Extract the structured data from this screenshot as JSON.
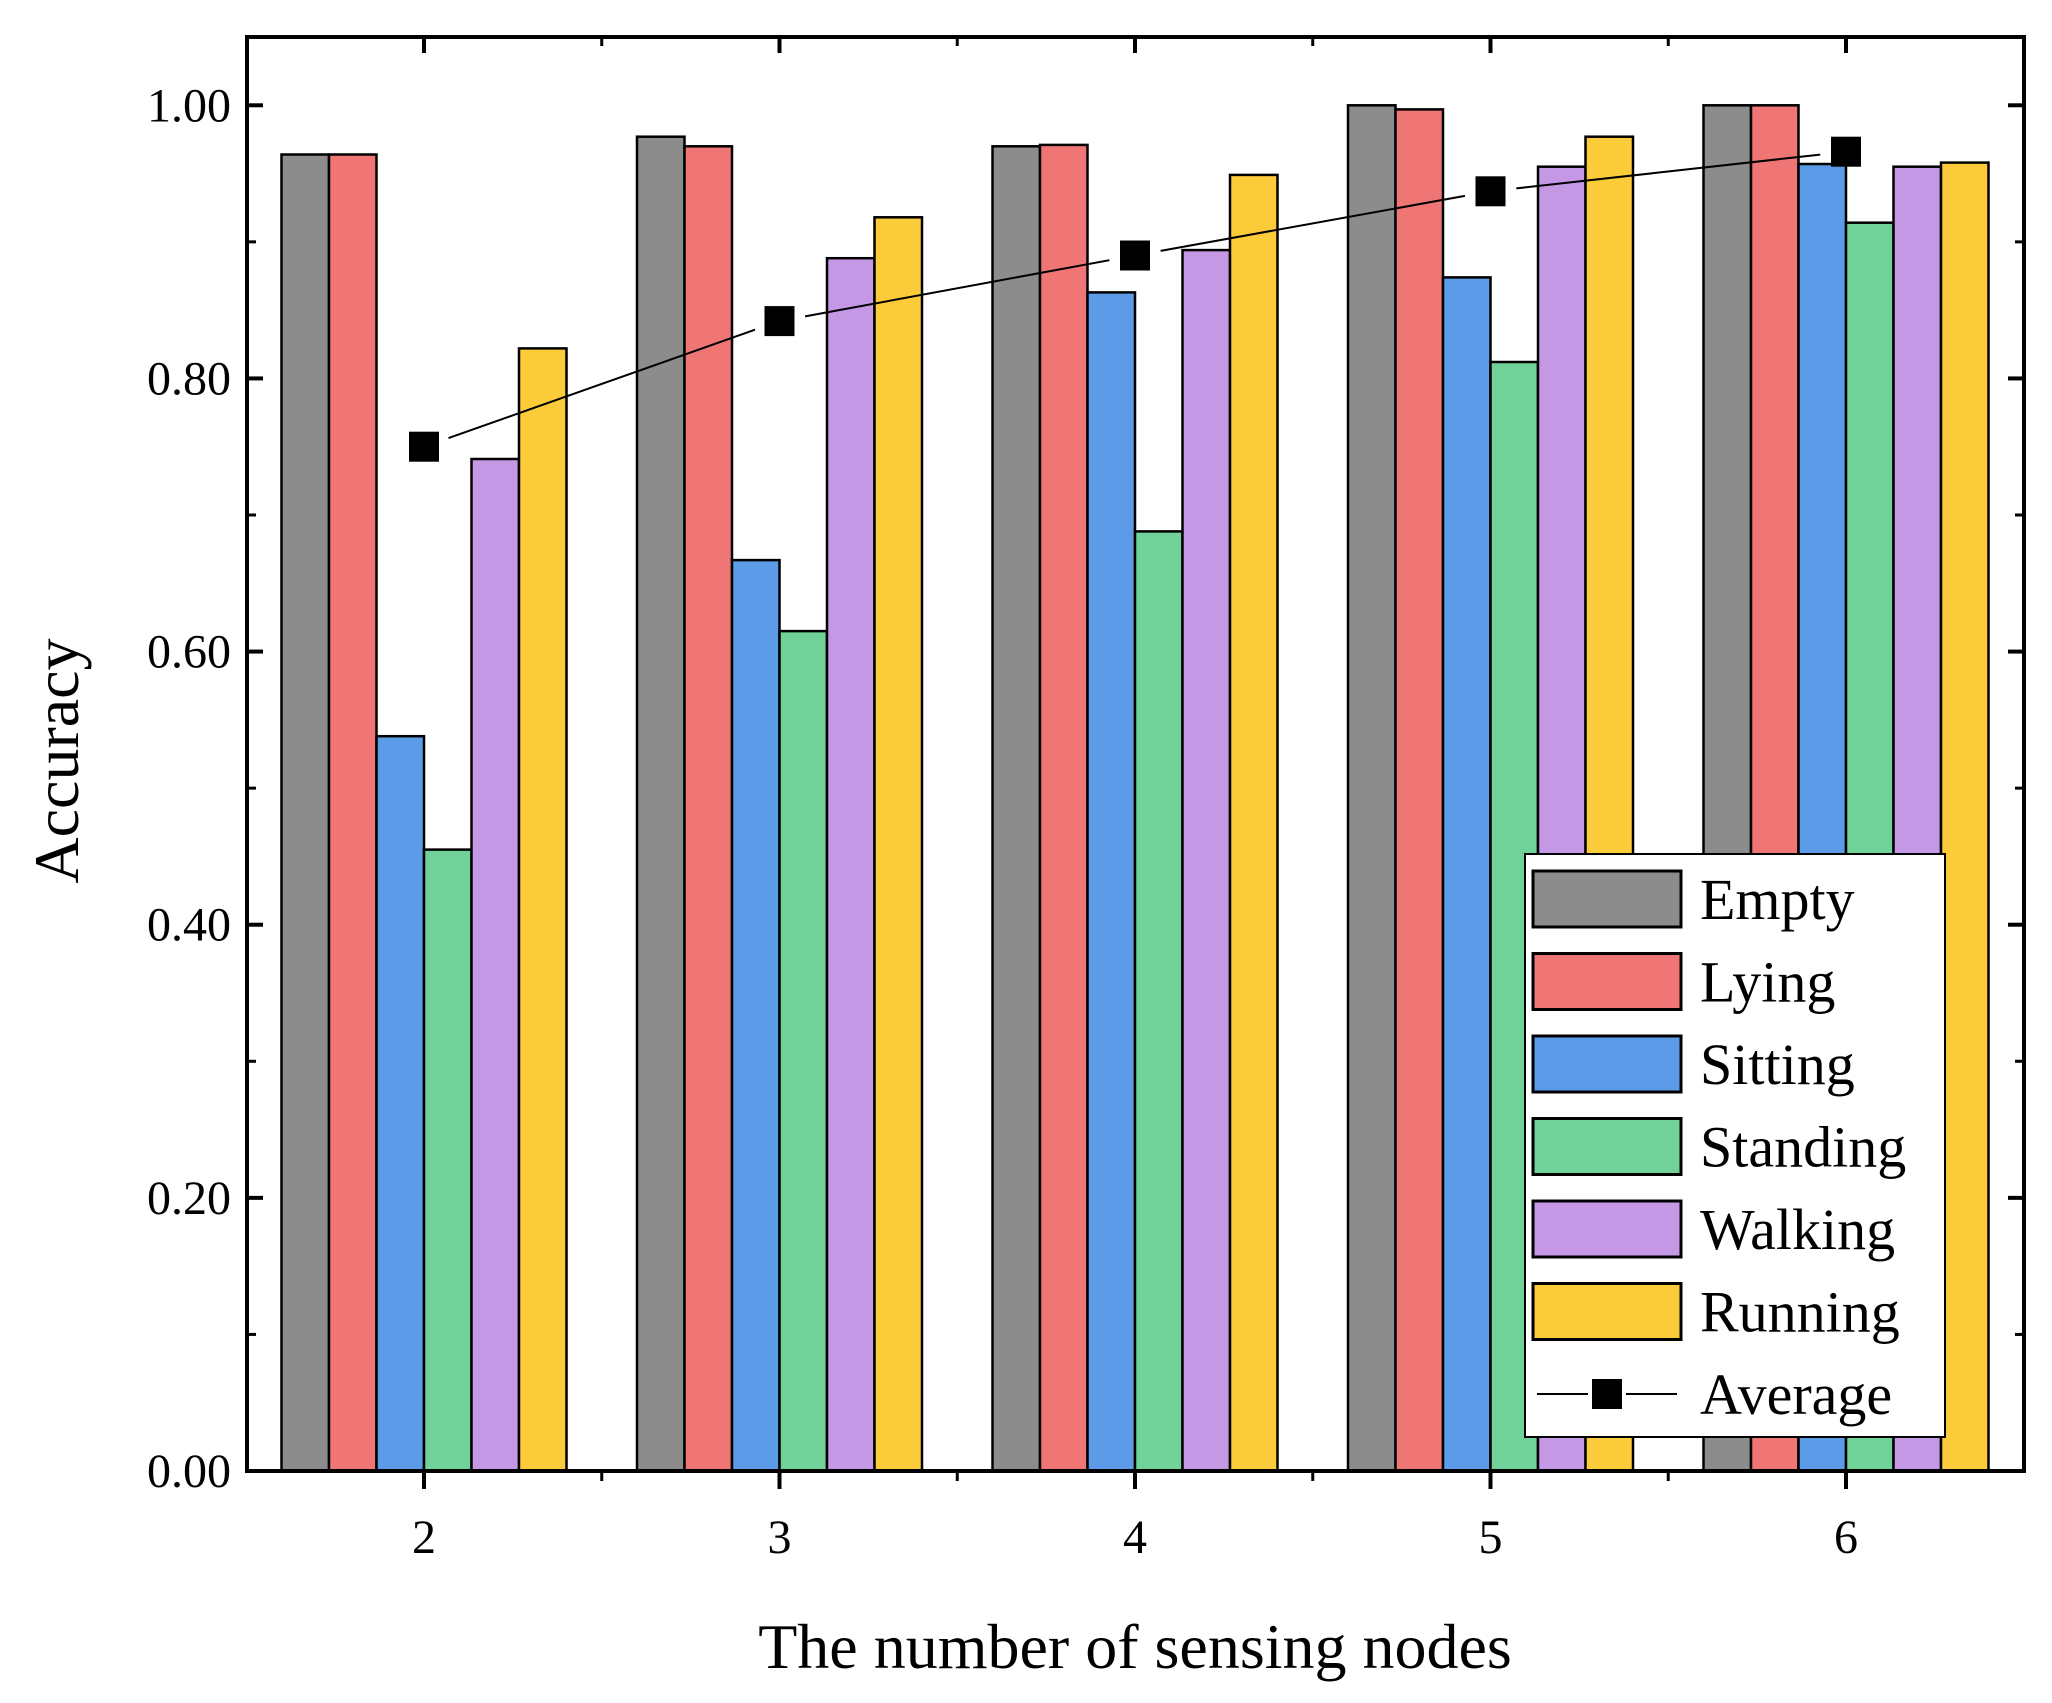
{
  "chart_data": {
    "type": "bar",
    "xlabel": "The number of sensing nodes",
    "ylabel": "Accuracy",
    "categories": [
      "2",
      "3",
      "4",
      "5",
      "6"
    ],
    "ylim": [
      0,
      1.05
    ],
    "yticks": [
      "0.00",
      "0.20",
      "0.40",
      "0.60",
      "0.80",
      "1.00"
    ],
    "ytick_values": [
      0,
      0.2,
      0.4,
      0.6,
      0.8,
      1.0
    ],
    "legend_position": "bottom-right",
    "grid": false,
    "series": [
      {
        "name": "Empty",
        "color": "#8c8c8c",
        "values": [
          0.964,
          0.977,
          0.97,
          1.0,
          1.0
        ]
      },
      {
        "name": "Lying",
        "color": "#f07575",
        "values": [
          0.964,
          0.97,
          0.971,
          0.997,
          1.0
        ]
      },
      {
        "name": "Sitting",
        "color": "#5b9be8",
        "values": [
          0.538,
          0.667,
          0.863,
          0.874,
          0.957
        ]
      },
      {
        "name": "Standing",
        "color": "#70d199",
        "values": [
          0.455,
          0.615,
          0.688,
          0.812,
          0.914
        ]
      },
      {
        "name": "Walking",
        "color": "#c598e6",
        "values": [
          0.741,
          0.888,
          0.894,
          0.955,
          0.955
        ]
      },
      {
        "name": "Running",
        "color": "#fccb3a",
        "values": [
          0.822,
          0.918,
          0.949,
          0.977,
          0.958
        ]
      }
    ],
    "line_series": {
      "name": "Average",
      "color": "#000000",
      "marker": "square",
      "values": [
        0.75,
        0.842,
        0.89,
        0.937,
        0.966
      ]
    }
  }
}
